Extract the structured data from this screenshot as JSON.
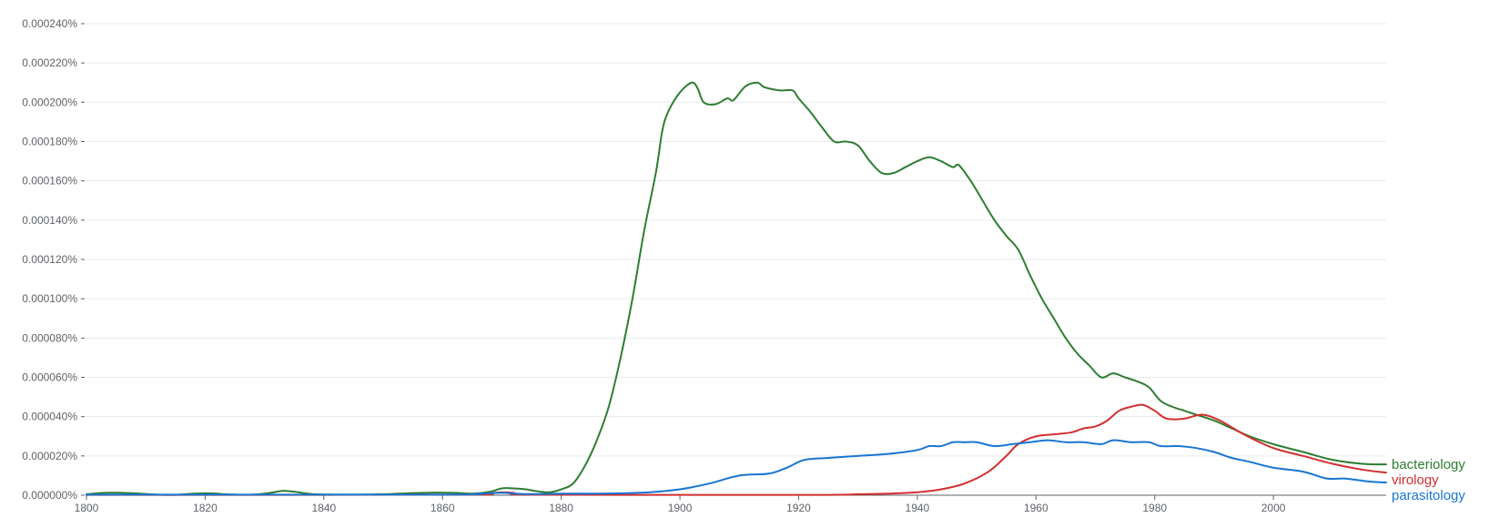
{
  "chart_data": {
    "type": "line",
    "title": "",
    "xlabel": "",
    "ylabel": "",
    "xlim": [
      1800,
      2019
    ],
    "ylim": [
      0,
      0.00024
    ],
    "grid": true,
    "legend": "right-end-labels",
    "y_ticks": [
      {
        "value": 0,
        "label": "0.000000%"
      },
      {
        "value": 2e-05,
        "label": "0.000020%"
      },
      {
        "value": 4e-05,
        "label": "0.000040%"
      },
      {
        "value": 6e-05,
        "label": "0.000060%"
      },
      {
        "value": 8e-05,
        "label": "0.000080%"
      },
      {
        "value": 0.0001,
        "label": "0.000100%"
      },
      {
        "value": 0.00012,
        "label": "0.000120%"
      },
      {
        "value": 0.00014,
        "label": "0.000140%"
      },
      {
        "value": 0.00016,
        "label": "0.000160%"
      },
      {
        "value": 0.00018,
        "label": "0.000180%"
      },
      {
        "value": 0.0002,
        "label": "0.000200%"
      },
      {
        "value": 0.00022,
        "label": "0.000220%"
      },
      {
        "value": 0.00024,
        "label": "0.000240%"
      }
    ],
    "x_ticks": [
      {
        "value": 1800,
        "label": "1800"
      },
      {
        "value": 1820,
        "label": "1820"
      },
      {
        "value": 1840,
        "label": "1840"
      },
      {
        "value": 1860,
        "label": "1860"
      },
      {
        "value": 1880,
        "label": "1880"
      },
      {
        "value": 1900,
        "label": "1900"
      },
      {
        "value": 1920,
        "label": "1920"
      },
      {
        "value": 1940,
        "label": "1940"
      },
      {
        "value": 1960,
        "label": "1960"
      },
      {
        "value": 1980,
        "label": "1980"
      },
      {
        "value": 2000,
        "label": "2000"
      }
    ],
    "series": [
      {
        "name": "bacteriology",
        "color": "#2e7d32",
        "points": [
          [
            1800,
            5e-07
          ],
          [
            1803,
            1.2e-06
          ],
          [
            1806,
            1.2e-06
          ],
          [
            1809,
            8e-07
          ],
          [
            1812,
            3e-07
          ],
          [
            1815,
            2e-07
          ],
          [
            1818,
            8e-07
          ],
          [
            1821,
            1e-06
          ],
          [
            1824,
            4e-07
          ],
          [
            1828,
            3e-07
          ],
          [
            1831,
            1.2e-06
          ],
          [
            1833,
            2.2e-06
          ],
          [
            1835,
            1.8e-06
          ],
          [
            1838,
            6e-07
          ],
          [
            1842,
            3e-07
          ],
          [
            1846,
            3e-07
          ],
          [
            1850,
            5e-07
          ],
          [
            1854,
            1e-06
          ],
          [
            1858,
            1.3e-06
          ],
          [
            1862,
            1.2e-06
          ],
          [
            1865,
            8e-07
          ],
          [
            1868,
            1.8e-06
          ],
          [
            1870,
            3.5e-06
          ],
          [
            1872,
            3.5e-06
          ],
          [
            1874,
            3e-06
          ],
          [
            1876,
            2e-06
          ],
          [
            1878,
            1.5e-06
          ],
          [
            1880,
            3e-06
          ],
          [
            1882,
            6e-06
          ],
          [
            1884,
            1.5e-05
          ],
          [
            1886,
            2.8e-05
          ],
          [
            1888,
            4.5e-05
          ],
          [
            1890,
            7e-05
          ],
          [
            1892,
            0.0001
          ],
          [
            1894,
            0.000135
          ],
          [
            1896,
            0.000165
          ],
          [
            1897,
            0.000185
          ],
          [
            1898,
            0.000195
          ],
          [
            1900,
            0.000205
          ],
          [
            1902,
            0.00021
          ],
          [
            1903,
            0.000207
          ],
          [
            1904,
            0.0002
          ],
          [
            1906,
            0.000199
          ],
          [
            1908,
            0.000202
          ],
          [
            1909,
            0.000201
          ],
          [
            1911,
            0.000208
          ],
          [
            1913,
            0.00021
          ],
          [
            1914,
            0.000208
          ],
          [
            1915,
            0.000207
          ],
          [
            1917,
            0.000206
          ],
          [
            1919,
            0.000206
          ],
          [
            1920,
            0.000202
          ],
          [
            1922,
            0.000195
          ],
          [
            1924,
            0.000187
          ],
          [
            1926,
            0.00018
          ],
          [
            1928,
            0.00018
          ],
          [
            1930,
            0.000178
          ],
          [
            1932,
            0.00017
          ],
          [
            1934,
            0.000164
          ],
          [
            1936,
            0.000164
          ],
          [
            1938,
            0.000167
          ],
          [
            1940,
            0.00017
          ],
          [
            1942,
            0.000172
          ],
          [
            1944,
            0.00017
          ],
          [
            1946,
            0.000167
          ],
          [
            1947,
            0.000168
          ],
          [
            1949,
            0.00016
          ],
          [
            1951,
            0.00015
          ],
          [
            1953,
            0.00014
          ],
          [
            1955,
            0.000132
          ],
          [
            1957,
            0.000125
          ],
          [
            1959,
            0.000112
          ],
          [
            1961,
            0.0001
          ],
          [
            1963,
            9e-05
          ],
          [
            1965,
            8e-05
          ],
          [
            1967,
            7.2e-05
          ],
          [
            1969,
            6.6e-05
          ],
          [
            1971,
            6e-05
          ],
          [
            1973,
            6.2e-05
          ],
          [
            1975,
            6e-05
          ],
          [
            1977,
            5.8e-05
          ],
          [
            1979,
            5.5e-05
          ],
          [
            1981,
            4.8e-05
          ],
          [
            1983,
            4.5e-05
          ],
          [
            1985,
            4.3e-05
          ],
          [
            1987,
            4.1e-05
          ],
          [
            1990,
            3.8e-05
          ],
          [
            1993,
            3.4e-05
          ],
          [
            1996,
            3e-05
          ],
          [
            2000,
            2.6e-05
          ],
          [
            2005,
            2.2e-05
          ],
          [
            2010,
            1.8e-05
          ],
          [
            2015,
            1.6e-05
          ],
          [
            2019,
            1.57e-05
          ]
        ]
      },
      {
        "name": "virology",
        "color": "#d32f2f",
        "points": [
          [
            1800,
            2e-07
          ],
          [
            1840,
            2e-07
          ],
          [
            1866,
            3e-07
          ],
          [
            1868,
            1e-06
          ],
          [
            1870,
            1.5e-06
          ],
          [
            1872,
            1.2e-06
          ],
          [
            1874,
            3e-07
          ],
          [
            1900,
            2e-07
          ],
          [
            1925,
            2e-07
          ],
          [
            1930,
            5e-07
          ],
          [
            1935,
            8e-07
          ],
          [
            1940,
            1.5e-06
          ],
          [
            1944,
            3e-06
          ],
          [
            1948,
            6e-06
          ],
          [
            1952,
            1.2e-05
          ],
          [
            1955,
            2e-05
          ],
          [
            1957,
            2.6e-05
          ],
          [
            1960,
            3e-05
          ],
          [
            1963,
            3.1e-05
          ],
          [
            1966,
            3.2e-05
          ],
          [
            1968,
            3.4e-05
          ],
          [
            1970,
            3.5e-05
          ],
          [
            1972,
            3.8e-05
          ],
          [
            1974,
            4.3e-05
          ],
          [
            1976,
            4.5e-05
          ],
          [
            1978,
            4.6e-05
          ],
          [
            1980,
            4.3e-05
          ],
          [
            1982,
            3.9e-05
          ],
          [
            1985,
            3.9e-05
          ],
          [
            1988,
            4.1e-05
          ],
          [
            1991,
            3.8e-05
          ],
          [
            1995,
            3.1e-05
          ],
          [
            2000,
            2.4e-05
          ],
          [
            2005,
            2e-05
          ],
          [
            2010,
            1.6e-05
          ],
          [
            2015,
            1.3e-05
          ],
          [
            2019,
            1.15e-05
          ]
        ]
      },
      {
        "name": "parasitology",
        "color": "#1976d2",
        "points": [
          [
            1800,
            3e-07
          ],
          [
            1860,
            3e-07
          ],
          [
            1866,
            8e-07
          ],
          [
            1870,
            1.2e-06
          ],
          [
            1874,
            6e-07
          ],
          [
            1880,
            8e-07
          ],
          [
            1885,
            8e-07
          ],
          [
            1890,
            1e-06
          ],
          [
            1895,
            1.5e-06
          ],
          [
            1900,
            3e-06
          ],
          [
            1905,
            6e-06
          ],
          [
            1910,
            1e-05
          ],
          [
            1915,
            1.1e-05
          ],
          [
            1918,
            1.4e-05
          ],
          [
            1921,
            1.8e-05
          ],
          [
            1925,
            1.9e-05
          ],
          [
            1930,
            2e-05
          ],
          [
            1935,
            2.1e-05
          ],
          [
            1940,
            2.3e-05
          ],
          [
            1942,
            2.5e-05
          ],
          [
            1944,
            2.5e-05
          ],
          [
            1946,
            2.7e-05
          ],
          [
            1948,
            2.7e-05
          ],
          [
            1950,
            2.7e-05
          ],
          [
            1953,
            2.5e-05
          ],
          [
            1956,
            2.6e-05
          ],
          [
            1959,
            2.7e-05
          ],
          [
            1962,
            2.8e-05
          ],
          [
            1965,
            2.7e-05
          ],
          [
            1968,
            2.7e-05
          ],
          [
            1971,
            2.6e-05
          ],
          [
            1973,
            2.8e-05
          ],
          [
            1976,
            2.7e-05
          ],
          [
            1979,
            2.7e-05
          ],
          [
            1981,
            2.5e-05
          ],
          [
            1984,
            2.5e-05
          ],
          [
            1987,
            2.4e-05
          ],
          [
            1990,
            2.2e-05
          ],
          [
            1993,
            1.9e-05
          ],
          [
            1996,
            1.7e-05
          ],
          [
            2000,
            1.4e-05
          ],
          [
            2005,
            1.2e-05
          ],
          [
            2009,
            8.5e-06
          ],
          [
            2012,
            8.5e-06
          ],
          [
            2016,
            7e-06
          ],
          [
            2019,
            6.5e-06
          ]
        ]
      }
    ]
  }
}
